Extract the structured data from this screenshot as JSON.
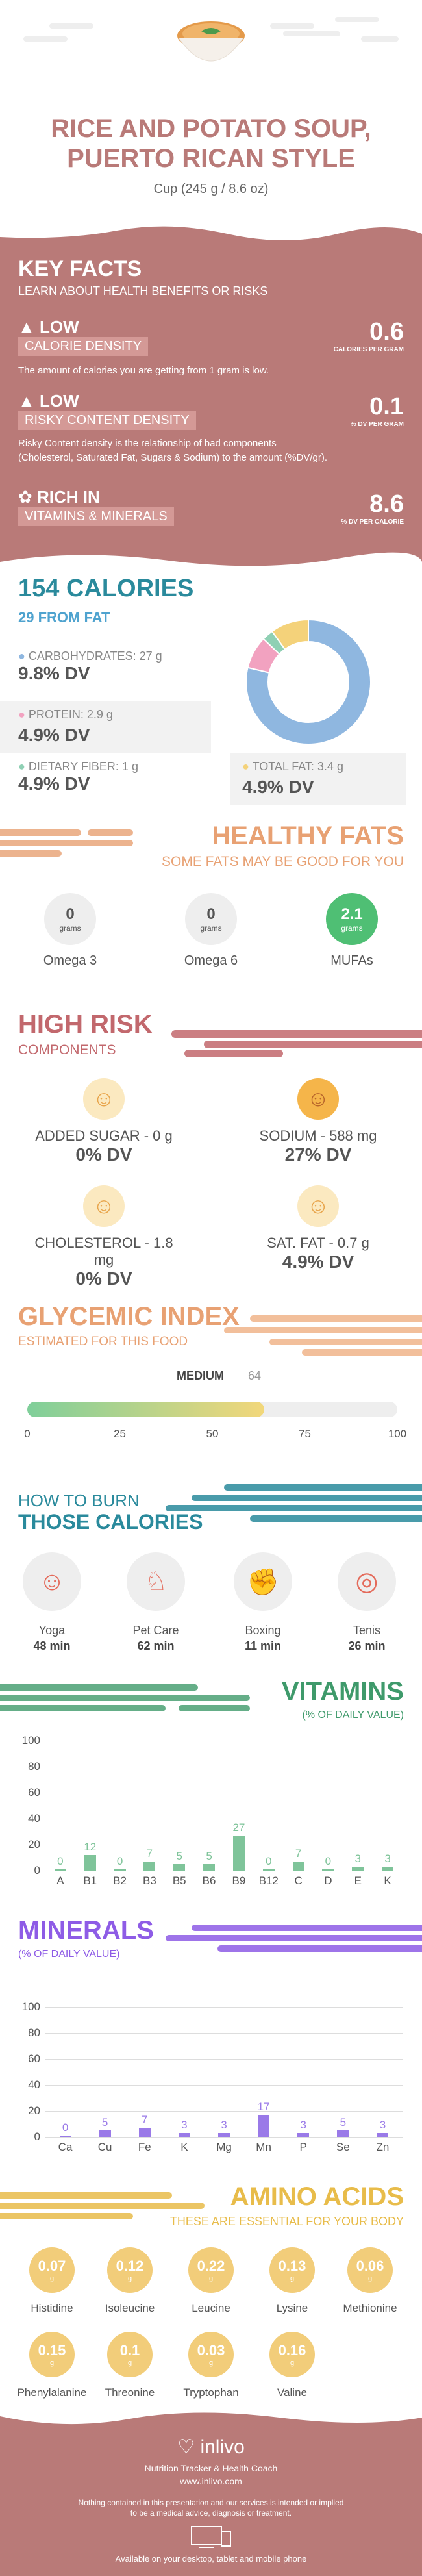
{
  "header": {
    "title_line1": "RICE AND POTATO SOUP,",
    "title_line2": "PUERTO RICAN STYLE",
    "serving": "Cup (245 g / 8.6 oz)"
  },
  "key_facts": {
    "title": "KEY FACTS",
    "subtitle": "LEARN ABOUT HEALTH BENEFITS OR RISKS",
    "items": [
      {
        "level": "LOW",
        "name": "CALORIE DENSITY",
        "value": "0.6",
        "unit": "CALORIES PER GRAM",
        "desc": "The amount of calories you are getting from 1 gram is low.",
        "desc2": ""
      },
      {
        "level": "LOW",
        "name": "RISKY CONTENT DENSITY",
        "value": "0.1",
        "unit": "% DV PER GRAM",
        "desc": "Risky Content density is the relationship of bad components",
        "desc2": "(Cholesterol, Saturated Fat, Sugars & Sodium) to the amount (%DV/gr)."
      },
      {
        "level": "RICH IN",
        "name": "VITAMINS & MINERALS",
        "value": "8.6",
        "unit": "% DV PER CALORIE",
        "desc": "",
        "desc2": ""
      }
    ]
  },
  "calories": {
    "title": "154 CALORIES",
    "subtitle": "29 FROM FAT",
    "carbs": {
      "label": "CARBOHYDRATES: 27 g",
      "dv": "9.8% DV",
      "color": "#8fb7e0"
    },
    "protein": {
      "label": "PROTEIN: 2.9 g",
      "dv": "4.9% DV",
      "color": "#f2a2c0"
    },
    "fiber": {
      "label": "DIETARY FIBER: 1 g",
      "dv": "4.9% DV",
      "color": "#8fd0b4"
    },
    "fat": {
      "label": "TOTAL FAT: 3.4 g",
      "dv": "4.9% DV",
      "color": "#f4d27a"
    },
    "donut": [
      {
        "name": "carbs",
        "value": 27,
        "color": "#8fb7e0"
      },
      {
        "name": "protein",
        "value": 2.9,
        "color": "#f2a2c0"
      },
      {
        "name": "fiber",
        "value": 1,
        "color": "#8fd0b4"
      },
      {
        "name": "fat",
        "value": 3.4,
        "color": "#f4d27a"
      }
    ]
  },
  "healthy_fats": {
    "title": "HEALTHY FATS",
    "subtitle": "SOME FATS MAY BE GOOD FOR YOU",
    "items": [
      {
        "value": "0",
        "unit": "grams",
        "name": "Omega 3"
      },
      {
        "value": "0",
        "unit": "grams",
        "name": "Omega 6"
      },
      {
        "value": "2.1",
        "unit": "grams",
        "name": "MUFAs"
      }
    ]
  },
  "high_risk": {
    "title": "HIGH RISK",
    "subtitle": "COMPONENTS",
    "items": [
      {
        "label": "ADDED SUGAR - 0 g",
        "dv": "0% DV"
      },
      {
        "label": "SODIUM - 588 mg",
        "dv": "27% DV"
      },
      {
        "label": "CHOLESTEROL - 1.8 mg",
        "dv": "0% DV"
      },
      {
        "label": "SAT. FAT - 0.7 g",
        "dv": "4.9% DV"
      }
    ]
  },
  "glycemic": {
    "title": "GLYCEMIC INDEX",
    "subtitle": "ESTIMATED FOR THIS FOOD",
    "level": "MEDIUM",
    "value": 64,
    "value_text": "64",
    "ticks": [
      "0",
      "25",
      "50",
      "75",
      "100"
    ]
  },
  "burn": {
    "title1": "HOW TO BURN",
    "title2": "THOSE CALORIES",
    "items": [
      {
        "name": "Yoga",
        "time": "48 min"
      },
      {
        "name": "Pet Care",
        "time": "62 min"
      },
      {
        "name": "Boxing",
        "time": "11 min"
      },
      {
        "name": "Tenis",
        "time": "26 min"
      }
    ]
  },
  "vitamins": {
    "title": "VITAMINS",
    "subtitle": "(% OF DAILY VALUE)",
    "color": "#7fc49a",
    "yticks": [
      "100",
      "80",
      "60",
      "40",
      "20",
      "0"
    ],
    "chart_data": {
      "type": "bar",
      "categories": [
        "A",
        "B1",
        "B2",
        "B3",
        "B5",
        "B6",
        "B9",
        "B12",
        "C",
        "D",
        "E",
        "K"
      ],
      "values": [
        0,
        12,
        0,
        7,
        5,
        5,
        27,
        0,
        7,
        0,
        3,
        3
      ],
      "labels": [
        "0",
        "12",
        "0",
        "7",
        "5",
        "5",
        "27",
        "0",
        "7",
        "0",
        "3",
        "3"
      ],
      "ylim": [
        0,
        100
      ]
    }
  },
  "minerals": {
    "title": "MINERALS",
    "subtitle": "(% OF DAILY VALUE)",
    "color": "#9a7ae8",
    "yticks": [
      "100",
      "80",
      "60",
      "40",
      "20",
      "0"
    ],
    "chart_data": {
      "type": "bar",
      "categories": [
        "Ca",
        "Cu",
        "Fe",
        "K",
        "Mg",
        "Mn",
        "P",
        "Se",
        "Zn"
      ],
      "values": [
        0,
        5,
        7,
        3,
        3,
        17,
        3,
        5,
        3
      ],
      "labels": [
        "0",
        "5",
        "7",
        "3",
        "3",
        "17",
        "3",
        "5",
        "3"
      ],
      "ylim": [
        0,
        100
      ]
    }
  },
  "amino": {
    "title": "AMINO ACIDS",
    "subtitle": "THESE ARE ESSENTIAL FOR YOUR BODY",
    "unit": "g",
    "items": [
      {
        "value": "0.07",
        "name": "Histidine"
      },
      {
        "value": "0.12",
        "name": "Isoleucine"
      },
      {
        "value": "0.22",
        "name": "Leucine"
      },
      {
        "value": "0.13",
        "name": "Lysine"
      },
      {
        "value": "0.06",
        "name": "Methionine"
      },
      {
        "value": "0.15",
        "name": "Phenylalanine"
      },
      {
        "value": "0.1",
        "name": "Threonine"
      },
      {
        "value": "0.03",
        "name": "Tryptophan"
      },
      {
        "value": "0.16",
        "name": "Valine"
      }
    ]
  },
  "footer": {
    "brand": "inlivo",
    "tagline": "Nutrition Tracker & Health Coach",
    "url": "www.inlivo.com",
    "disclaimer1": "Nothing contained in this presentation and our services is intended or implied",
    "disclaimer2": "to be a medical advice, diagnosis or treatment.",
    "available": "Available on your desktop, tablet and mobile phone"
  }
}
